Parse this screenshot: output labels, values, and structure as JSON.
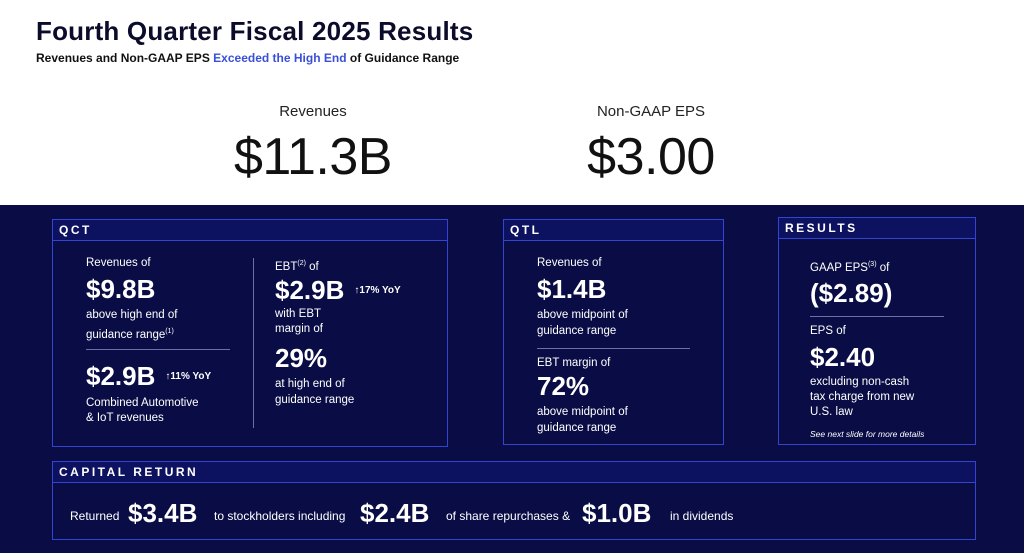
{
  "header": {
    "title": "Fourth Quarter Fiscal 2025 Results",
    "subtitle": {
      "before": "Revenues and Non-GAAP EPS",
      "highlight": "Exceeded the High End",
      "after": "of Guidance Range"
    }
  },
  "headline": [
    {
      "label": "Revenues",
      "value": "$11.3B"
    },
    {
      "label": "Non-GAAP EPS",
      "value": "$3.00"
    }
  ],
  "qct": {
    "title": "QCT",
    "revenues": {
      "label": "Revenues of",
      "value": "$9.8B",
      "note": [
        "above high end of",
        "guidance range"
      ],
      "footnote": "(1)"
    },
    "auto_iot": {
      "value": "$2.9B",
      "growth": "↑11% YoY",
      "note": [
        "Combined Automotive",
        "& IoT revenues"
      ]
    },
    "ebt": {
      "label": "EBT",
      "footnote": "(2)",
      "label_suffix": "of",
      "value": "$2.9B",
      "growth": "↑17% YoY",
      "note": [
        "with EBT",
        "margin of"
      ],
      "margin": "29%",
      "margin_note": [
        "at high end of",
        "guidance range"
      ]
    }
  },
  "qtl": {
    "title": "QTL",
    "revenues": {
      "label": "Revenues of",
      "value": "$1.4B",
      "note": [
        "above midpoint of",
        "guidance range"
      ]
    },
    "ebt_margin": {
      "label": "EBT margin of",
      "value": "72%",
      "note": [
        "above midpoint of",
        "guidance range"
      ]
    }
  },
  "results": {
    "title": "RESULTS",
    "gaap_eps": {
      "label": "GAAP EPS",
      "footnote": "(3)",
      "label_suffix": "of",
      "value": "($2.89)"
    },
    "eps": {
      "label": "EPS of",
      "value": "$2.40",
      "note": [
        "excluding non-cash",
        "tax charge from new",
        "U.S. law"
      ],
      "detail": "See next slide for more details"
    }
  },
  "capital_return": {
    "title": "CAPITAL RETURN",
    "parts": [
      "Returned",
      "$3.4B",
      "to stockholders including",
      "$2.4B",
      "of share repurchases &",
      "$1.0B",
      "in dividends"
    ]
  }
}
